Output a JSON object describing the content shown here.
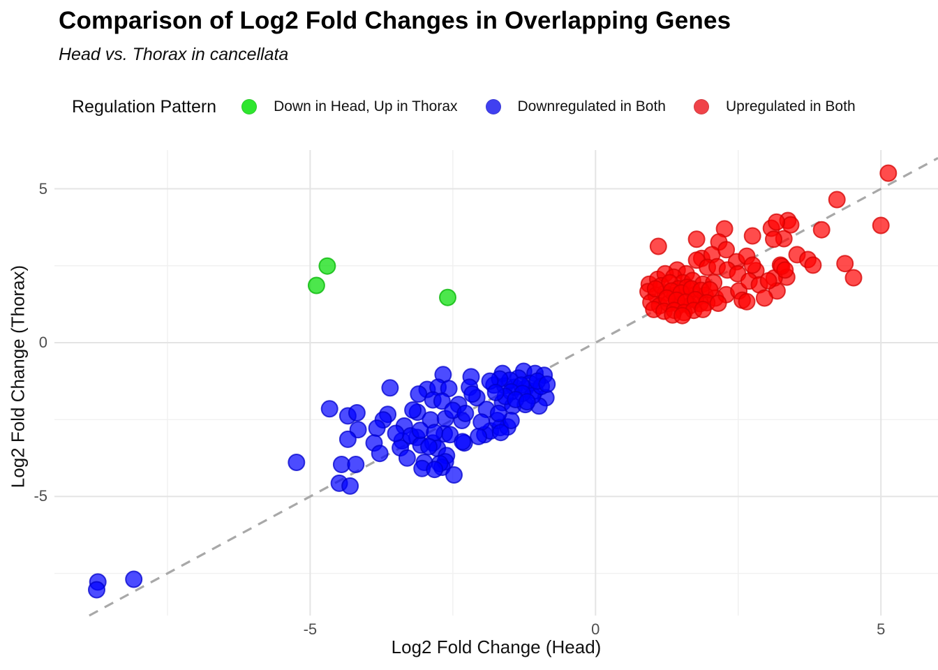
{
  "title": "Comparison of Log2 Fold Changes in Overlapping Genes",
  "subtitle": "Head vs. Thorax in cancellata",
  "legend": {
    "title": "Regulation Pattern",
    "items": [
      {
        "label": "Down in Head, Up in Thorax",
        "color": "#2ee62e"
      },
      {
        "label": "Downregulated in Both",
        "color": "#4040f0"
      },
      {
        "label": "Upregulated in Both",
        "color": "#f04349"
      }
    ]
  },
  "chart_data": {
    "type": "scatter",
    "title": "Comparison of Log2 Fold Changes in Overlapping Genes",
    "subtitle": "Head vs. Thorax in cancellata",
    "xlabel": "Log2 Fold Change (Head)",
    "ylabel": "Log2 Fold Change (Thorax)",
    "xlim": [
      -9.48,
      6.0
    ],
    "ylim": [
      -8.87,
      6.26
    ],
    "grid": true,
    "legend_position": "top",
    "x_ticks": [
      {
        "value": -5,
        "label": "-5"
      },
      {
        "value": 0,
        "label": "0"
      },
      {
        "value": 5,
        "label": "5"
      }
    ],
    "y_ticks": [
      {
        "value": 5,
        "label": "5"
      },
      {
        "value": 0,
        "label": "0"
      },
      {
        "value": -5,
        "label": "-5"
      }
    ],
    "x_minor_ticks": [
      -7.5,
      -2.5,
      2.5
    ],
    "y_minor_ticks": [
      -7.5,
      -2.5,
      2.5
    ],
    "reference_line": {
      "kind": "identity y = x",
      "style": "dashed",
      "color": "#a8a8a8"
    },
    "series": [
      {
        "name": "Down in Head, Up in Thorax",
        "color": "#00dd00",
        "stroke": "#00b400",
        "points": [
          [
            -4.7,
            2.49
          ],
          [
            -4.89,
            1.86
          ],
          [
            -2.59,
            1.47
          ]
        ]
      },
      {
        "name": "Downregulated in Both",
        "color": "#0000ff",
        "stroke": "#0000cc",
        "points": [
          [
            -3.6,
            -1.47
          ],
          [
            -4.66,
            -2.15
          ],
          [
            -4.34,
            -2.38
          ],
          [
            -4.18,
            -2.28
          ],
          [
            -3.64,
            -2.33
          ],
          [
            -3.72,
            -2.51
          ],
          [
            -4.16,
            -2.83
          ],
          [
            -3.83,
            -2.78
          ],
          [
            -4.34,
            -3.14
          ],
          [
            -3.88,
            -3.26
          ],
          [
            -3.35,
            -2.71
          ],
          [
            -3.12,
            -2.26
          ],
          [
            -3.39,
            -3.19
          ],
          [
            -3.13,
            -3.08
          ],
          [
            -5.24,
            -3.89
          ],
          [
            -4.45,
            -3.96
          ],
          [
            -4.2,
            -3.96
          ],
          [
            -4.49,
            -4.57
          ],
          [
            -4.3,
            -4.66
          ],
          [
            -3.42,
            -3.42
          ],
          [
            -3.24,
            -3.03
          ],
          [
            -3.06,
            -3.33
          ],
          [
            -2.85,
            -3.26
          ],
          [
            -3.0,
            -3.89
          ],
          [
            -2.77,
            -3.44
          ],
          [
            -2.65,
            -2.96
          ],
          [
            -2.61,
            -3.67
          ],
          [
            -2.3,
            -3.26
          ],
          [
            -2.63,
            -3.87
          ],
          [
            -2.69,
            -4.05
          ],
          [
            -3.04,
            -4.09
          ],
          [
            -1.94,
            -2.99
          ],
          [
            -1.84,
            -2.87
          ],
          [
            -1.67,
            -2.76
          ],
          [
            -1.54,
            -2.74
          ],
          [
            -2.67,
            -1.04
          ],
          [
            -2.18,
            -1.11
          ],
          [
            -1.63,
            -1.0
          ],
          [
            -1.26,
            -0.93
          ],
          [
            -1.06,
            -1.0
          ],
          [
            -0.9,
            -1.06
          ],
          [
            -2.95,
            -1.52
          ],
          [
            -2.76,
            -1.45
          ],
          [
            -2.57,
            -1.49
          ],
          [
            -2.21,
            -1.45
          ],
          [
            -2.08,
            -1.79
          ],
          [
            -1.78,
            -1.38
          ],
          [
            -1.59,
            -1.4
          ],
          [
            -1.42,
            -1.45
          ],
          [
            -1.23,
            -1.49
          ],
          [
            -1.06,
            -1.56
          ],
          [
            -0.87,
            -1.79
          ],
          [
            -3.1,
            -1.67
          ],
          [
            -2.85,
            -1.86
          ],
          [
            -2.69,
            -1.9
          ],
          [
            -2.4,
            -2.01
          ],
          [
            -2.16,
            -1.67
          ],
          [
            -1.91,
            -2.17
          ],
          [
            -1.63,
            -1.95
          ],
          [
            -1.45,
            -2.06
          ],
          [
            -1.23,
            -2.01
          ],
          [
            -0.99,
            -2.06
          ],
          [
            -3.2,
            -2.19
          ],
          [
            -2.89,
            -2.51
          ],
          [
            -2.63,
            -2.47
          ],
          [
            -2.34,
            -2.53
          ],
          [
            -2.0,
            -2.58
          ],
          [
            -1.72,
            -2.53
          ],
          [
            -1.48,
            -2.53
          ],
          [
            -3.07,
            -2.85
          ],
          [
            -2.82,
            -2.92
          ],
          [
            -2.55,
            -2.99
          ],
          [
            -2.05,
            -3.05
          ],
          [
            -1.66,
            -2.92
          ],
          [
            -2.92,
            -3.38
          ],
          [
            -2.33,
            -3.22
          ],
          [
            -2.73,
            -3.93
          ],
          [
            -2.82,
            -4.12
          ],
          [
            -1.35,
            -1.15
          ],
          [
            -1.5,
            -1.22
          ],
          [
            -1.68,
            -1.18
          ],
          [
            -1.85,
            -1.25
          ],
          [
            -1.15,
            -1.32
          ],
          [
            -1.3,
            -1.38
          ],
          [
            -1.48,
            -1.6
          ],
          [
            -1.1,
            -1.72
          ],
          [
            -0.95,
            -1.42
          ],
          [
            -1.58,
            -1.75
          ],
          [
            -1.75,
            -1.62
          ],
          [
            -1.28,
            -1.65
          ],
          [
            -1.02,
            -1.25
          ],
          [
            -0.85,
            -1.35
          ],
          [
            -1.4,
            -1.85
          ],
          [
            -1.2,
            -1.92
          ],
          [
            -1.7,
            -2.3
          ],
          [
            -2.5,
            -2.2
          ],
          [
            -2.28,
            -2.3
          ],
          [
            -3.5,
            -2.95
          ],
          [
            -3.78,
            -3.6
          ],
          [
            -3.3,
            -3.75
          ],
          [
            -2.48,
            -4.3
          ],
          [
            -8.72,
            -7.78
          ],
          [
            -8.74,
            -8.03
          ],
          [
            -8.09,
            -7.69
          ]
        ]
      },
      {
        "name": "Upregulated in Both",
        "color": "#ff0000",
        "stroke": "#d40000",
        "points": [
          [
            1.1,
            3.13
          ],
          [
            1.77,
            3.36
          ],
          [
            2.26,
            3.7
          ],
          [
            2.16,
            3.27
          ],
          [
            2.75,
            3.47
          ],
          [
            3.08,
            3.72
          ],
          [
            3.3,
            3.38
          ],
          [
            1.86,
            2.74
          ],
          [
            2.04,
            2.86
          ],
          [
            2.29,
            3.02
          ],
          [
            2.47,
            2.63
          ],
          [
            2.65,
            2.81
          ],
          [
            2.81,
            2.34
          ],
          [
            3.24,
            2.52
          ],
          [
            3.35,
            2.13
          ],
          [
            1.43,
            2.36
          ],
          [
            1.59,
            2.24
          ],
          [
            1.77,
            2.68
          ],
          [
            1.96,
            2.45
          ],
          [
            2.13,
            2.47
          ],
          [
            2.31,
            2.36
          ],
          [
            2.49,
            2.24
          ],
          [
            0.94,
            1.9
          ],
          [
            1.09,
            2.06
          ],
          [
            1.22,
            2.24
          ],
          [
            1.37,
            2.13
          ],
          [
            1.53,
            1.95
          ],
          [
            1.7,
            2.02
          ],
          [
            1.88,
            1.9
          ],
          [
            2.07,
            1.95
          ],
          [
            0.92,
            1.66
          ],
          [
            1.06,
            1.54
          ],
          [
            1.22,
            1.61
          ],
          [
            1.39,
            1.54
          ],
          [
            1.58,
            1.5
          ],
          [
            1.74,
            1.56
          ],
          [
            1.92,
            1.54
          ],
          [
            2.1,
            1.45
          ],
          [
            2.29,
            1.56
          ],
          [
            0.97,
            1.31
          ],
          [
            1.12,
            1.2
          ],
          [
            1.28,
            1.27
          ],
          [
            1.47,
            1.22
          ],
          [
            1.65,
            1.2
          ],
          [
            1.83,
            1.27
          ],
          [
            2.51,
            1.68
          ],
          [
            2.69,
            2.0
          ],
          [
            2.87,
            1.88
          ],
          [
            3.13,
            2.1
          ],
          [
            3.18,
            1.68
          ],
          [
            2.96,
            1.45
          ],
          [
            2.57,
            1.38
          ],
          [
            2.65,
            1.33
          ],
          [
            5.13,
            5.51
          ],
          [
            4.23,
            4.65
          ],
          [
            5.0,
            3.81
          ],
          [
            3.96,
            3.67
          ],
          [
            3.37,
            3.97
          ],
          [
            3.42,
            3.83
          ],
          [
            3.17,
            3.92
          ],
          [
            3.12,
            3.36
          ],
          [
            3.53,
            2.86
          ],
          [
            3.72,
            2.7
          ],
          [
            3.81,
            2.52
          ],
          [
            3.26,
            2.48
          ],
          [
            3.32,
            2.36
          ],
          [
            3.03,
            2.01
          ],
          [
            4.37,
            2.57
          ],
          [
            4.52,
            2.11
          ],
          [
            2.75,
            2.52
          ],
          [
            1.15,
            1.85
          ],
          [
            1.3,
            1.95
          ],
          [
            1.45,
            1.75
          ],
          [
            1.6,
            1.8
          ],
          [
            1.33,
            1.68
          ],
          [
            1.05,
            1.75
          ],
          [
            1.5,
            1.62
          ],
          [
            1.68,
            1.75
          ],
          [
            1.85,
            1.7
          ],
          [
            2.0,
            1.72
          ],
          [
            1.25,
            1.45
          ],
          [
            1.42,
            1.38
          ],
          [
            1.58,
            1.32
          ],
          [
            1.75,
            1.4
          ],
          [
            1.95,
            1.3
          ],
          [
            2.15,
            1.28
          ],
          [
            1.02,
            1.08
          ],
          [
            1.2,
            1.02
          ],
          [
            1.38,
            1.05
          ],
          [
            1.55,
            0.98
          ],
          [
            1.72,
            1.05
          ],
          [
            1.88,
            1.08
          ],
          [
            1.35,
            0.9
          ],
          [
            1.52,
            0.88
          ]
        ]
      }
    ]
  }
}
